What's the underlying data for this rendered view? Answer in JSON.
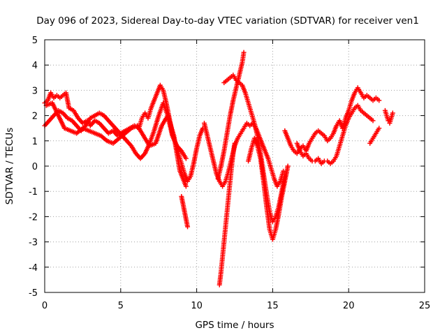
{
  "chart_data": {
    "type": "scatter",
    "title": "Day 096 of 2023, Sidereal Day-to-day VTEC variation (SDTVAR) for receiver ven1",
    "xlabel": "GPS time / hours",
    "ylabel": "SDTVAR / TECUs",
    "xlim": [
      0,
      25
    ],
    "ylim": [
      -5,
      5
    ],
    "xticks": [
      0,
      5,
      10,
      15,
      20,
      25
    ],
    "yticks": [
      -5,
      -4,
      -3,
      -2,
      -1,
      0,
      1,
      2,
      3,
      4,
      5
    ],
    "grid": true,
    "marker": "+",
    "color": "#ff0000",
    "series": [
      {
        "points": [
          [
            0,
            2.5
          ],
          [
            0.2,
            2.6
          ],
          [
            0.4,
            2.9
          ],
          [
            0.6,
            2.7
          ],
          [
            0.8,
            2.8
          ],
          [
            1.0,
            2.7
          ],
          [
            1.2,
            2.8
          ],
          [
            1.4,
            2.9
          ],
          [
            1.6,
            2.3
          ],
          [
            1.9,
            2.2
          ],
          [
            2.2,
            1.9
          ],
          [
            2.5,
            1.7
          ],
          [
            2.8,
            1.8
          ],
          [
            3.0,
            1.6
          ],
          [
            3.3,
            1.8
          ],
          [
            3.6,
            1.7
          ],
          [
            3.9,
            1.5
          ],
          [
            4.2,
            1.3
          ],
          [
            4.5,
            1.4
          ],
          [
            4.8,
            1.2
          ],
          [
            5.0,
            1.3
          ],
          [
            5.3,
            1.4
          ],
          [
            5.6,
            1.5
          ],
          [
            5.9,
            1.6
          ],
          [
            6.2,
            1.5
          ],
          [
            6.4,
            1.9
          ],
          [
            6.6,
            2.1
          ],
          [
            6.8,
            1.9
          ],
          [
            7.0,
            2.3
          ],
          [
            7.2,
            2.6
          ],
          [
            7.4,
            2.9
          ],
          [
            7.6,
            3.2
          ],
          [
            7.8,
            3.0
          ],
          [
            8.0,
            2.5
          ],
          [
            8.2,
            1.9
          ],
          [
            8.4,
            1.3
          ],
          [
            8.6,
            0.9
          ],
          [
            8.8,
            0.5
          ],
          [
            9.0,
            0.1
          ],
          [
            9.2,
            -0.3
          ],
          [
            9.4,
            -0.6
          ],
          [
            9.6,
            -0.4
          ],
          [
            9.8,
            0.1
          ],
          [
            10.0,
            0.7
          ],
          [
            10.2,
            1.2
          ],
          [
            10.4,
            1.5
          ]
        ]
      },
      {
        "points": [
          [
            0,
            1.6
          ],
          [
            0.3,
            1.8
          ],
          [
            0.6,
            2.0
          ],
          [
            0.9,
            2.2
          ],
          [
            1.2,
            2.1
          ],
          [
            1.5,
            1.9
          ],
          [
            1.8,
            1.8
          ],
          [
            2.1,
            1.6
          ],
          [
            2.4,
            1.4
          ],
          [
            2.7,
            1.6
          ],
          [
            3.0,
            1.9
          ],
          [
            3.3,
            2.0
          ],
          [
            3.6,
            2.1
          ],
          [
            3.9,
            2.0
          ],
          [
            4.2,
            1.8
          ],
          [
            4.5,
            1.6
          ],
          [
            4.8,
            1.4
          ],
          [
            5.1,
            1.2
          ],
          [
            5.4,
            1.0
          ],
          [
            5.7,
            0.8
          ],
          [
            6.0,
            0.5
          ],
          [
            6.3,
            0.3
          ],
          [
            6.6,
            0.5
          ],
          [
            6.9,
            0.9
          ],
          [
            7.2,
            1.4
          ],
          [
            7.5,
            2.0
          ],
          [
            7.8,
            2.5
          ],
          [
            8.1,
            2.0
          ],
          [
            8.4,
            1.2
          ],
          [
            8.7,
            0.8
          ],
          [
            9.0,
            0.6
          ],
          [
            9.3,
            0.3
          ]
        ]
      },
      {
        "points": [
          [
            0.1,
            2.4
          ],
          [
            0.5,
            2.5
          ],
          [
            0.9,
            2.0
          ],
          [
            1.3,
            1.5
          ],
          [
            1.7,
            1.4
          ],
          [
            2.1,
            1.3
          ],
          [
            2.5,
            1.5
          ],
          [
            2.9,
            1.4
          ],
          [
            3.3,
            1.3
          ],
          [
            3.7,
            1.2
          ],
          [
            4.1,
            1.0
          ],
          [
            4.5,
            0.9
          ],
          [
            4.9,
            1.1
          ],
          [
            5.3,
            1.3
          ],
          [
            5.7,
            1.5
          ],
          [
            6.1,
            1.6
          ],
          [
            6.5,
            1.2
          ],
          [
            6.9,
            0.8
          ],
          [
            7.3,
            0.9
          ],
          [
            7.7,
            1.6
          ],
          [
            8.1,
            2.0
          ],
          [
            8.5,
            1.2
          ],
          [
            8.9,
            -0.2
          ],
          [
            9.3,
            -0.8
          ]
        ]
      },
      {
        "points": [
          [
            9.0,
            -1.2
          ],
          [
            9.1,
            -1.5
          ],
          [
            9.2,
            -1.8
          ],
          [
            9.3,
            -2.1
          ],
          [
            9.4,
            -2.4
          ]
        ]
      },
      {
        "points": [
          [
            10.5,
            1.7
          ],
          [
            10.7,
            1.2
          ],
          [
            10.9,
            0.7
          ],
          [
            11.1,
            0.2
          ],
          [
            11.3,
            -0.3
          ],
          [
            11.5,
            -0.6
          ],
          [
            11.7,
            -0.8
          ],
          [
            11.9,
            -0.6
          ],
          [
            12.1,
            -0.2
          ],
          [
            12.3,
            0.3
          ],
          [
            12.5,
            0.8
          ],
          [
            12.7,
            1.1
          ],
          [
            12.9,
            1.3
          ],
          [
            13.1,
            1.5
          ],
          [
            13.3,
            1.7
          ],
          [
            13.5,
            1.6
          ],
          [
            13.7,
            1.7
          ],
          [
            13.9,
            1.5
          ],
          [
            14.1,
            1.2
          ],
          [
            14.3,
            0.9
          ],
          [
            14.5,
            0.6
          ],
          [
            14.7,
            0.3
          ],
          [
            14.9,
            -0.1
          ],
          [
            15.1,
            -0.5
          ],
          [
            15.3,
            -0.8
          ],
          [
            15.5,
            -0.6
          ],
          [
            15.7,
            -0.2
          ]
        ]
      },
      {
        "points": [
          [
            11.5,
            -4.7
          ],
          [
            11.6,
            -4.2
          ],
          [
            11.7,
            -3.6
          ],
          [
            11.8,
            -3.0
          ],
          [
            11.9,
            -2.4
          ],
          [
            12.0,
            -1.8
          ],
          [
            12.1,
            -1.2
          ],
          [
            12.2,
            -0.6
          ],
          [
            12.3,
            0.0
          ],
          [
            12.4,
            0.5
          ],
          [
            12.5,
            0.9
          ]
        ]
      },
      {
        "points": [
          [
            11.4,
            -0.5
          ],
          [
            11.6,
            0.0
          ],
          [
            11.8,
            0.6
          ],
          [
            12.0,
            1.3
          ],
          [
            12.2,
            2.0
          ],
          [
            12.4,
            2.6
          ],
          [
            12.6,
            3.1
          ],
          [
            12.8,
            3.6
          ],
          [
            13.0,
            4.1
          ],
          [
            13.1,
            4.5
          ]
        ]
      },
      {
        "points": [
          [
            11.8,
            3.3
          ],
          [
            12.0,
            3.4
          ],
          [
            12.2,
            3.5
          ],
          [
            12.4,
            3.6
          ],
          [
            12.6,
            3.4
          ],
          [
            12.8,
            3.3
          ],
          [
            13.0,
            3.2
          ],
          [
            13.2,
            2.9
          ],
          [
            13.4,
            2.5
          ],
          [
            13.6,
            2.1
          ],
          [
            13.8,
            1.7
          ],
          [
            14.0,
            1.2
          ],
          [
            14.2,
            0.5
          ],
          [
            14.4,
            -0.3
          ],
          [
            14.6,
            -1.1
          ],
          [
            14.8,
            -1.8
          ],
          [
            15.0,
            -2.2
          ],
          [
            15.2,
            -2.0
          ],
          [
            15.4,
            -1.6
          ],
          [
            15.6,
            -1.0
          ],
          [
            15.8,
            -0.4
          ]
        ]
      },
      {
        "points": [
          [
            13.4,
            0.2
          ],
          [
            13.6,
            0.7
          ],
          [
            13.8,
            1.1
          ],
          [
            14.0,
            0.8
          ],
          [
            14.2,
            0.3
          ],
          [
            14.4,
            -0.6
          ],
          [
            14.6,
            -1.6
          ],
          [
            14.8,
            -2.5
          ],
          [
            15.0,
            -2.9
          ],
          [
            15.2,
            -2.5
          ],
          [
            15.4,
            -1.9
          ],
          [
            15.6,
            -1.2
          ],
          [
            15.8,
            -0.6
          ],
          [
            16.0,
            0.0
          ]
        ]
      },
      {
        "points": [
          [
            15.8,
            1.4
          ],
          [
            16.0,
            1.1
          ],
          [
            16.2,
            0.8
          ],
          [
            16.4,
            0.6
          ],
          [
            16.6,
            0.5
          ],
          [
            16.8,
            0.7
          ],
          [
            17.0,
            0.8
          ],
          [
            17.2,
            0.6
          ],
          [
            17.4,
            0.9
          ],
          [
            17.6,
            1.1
          ],
          [
            17.8,
            1.3
          ],
          [
            18.0,
            1.4
          ],
          [
            18.2,
            1.3
          ],
          [
            18.4,
            1.2
          ],
          [
            18.6,
            1.0
          ],
          [
            18.8,
            1.1
          ],
          [
            19.0,
            1.3
          ],
          [
            19.2,
            1.6
          ],
          [
            19.4,
            1.8
          ],
          [
            19.6,
            1.5
          ],
          [
            19.8,
            1.9
          ],
          [
            20.0,
            2.2
          ],
          [
            20.2,
            2.6
          ],
          [
            20.4,
            2.9
          ],
          [
            20.6,
            3.1
          ],
          [
            20.8,
            2.9
          ],
          [
            21.0,
            2.7
          ],
          [
            21.2,
            2.8
          ],
          [
            21.4,
            2.7
          ],
          [
            21.6,
            2.6
          ],
          [
            21.8,
            2.7
          ],
          [
            22.0,
            2.6
          ]
        ]
      },
      {
        "points": [
          [
            16.6,
            0.9
          ],
          [
            16.8,
            0.6
          ],
          [
            17.0,
            0.4
          ],
          [
            17.2,
            0.5
          ],
          [
            17.4,
            0.3
          ],
          [
            17.6,
            0.2
          ],
          [
            17.8,
            0.2
          ],
          [
            18.0,
            0.3
          ],
          [
            18.2,
            0.1
          ],
          [
            18.4,
            0.2
          ],
          [
            18.6,
            0.2
          ],
          [
            18.8,
            0.1
          ],
          [
            19.0,
            0.2
          ],
          [
            19.2,
            0.4
          ],
          [
            19.4,
            0.8
          ],
          [
            19.6,
            1.2
          ],
          [
            19.8,
            1.6
          ],
          [
            20.0,
            1.9
          ],
          [
            20.2,
            2.1
          ],
          [
            20.4,
            2.3
          ],
          [
            20.6,
            2.4
          ],
          [
            20.8,
            2.2
          ],
          [
            21.0,
            2.1
          ],
          [
            21.2,
            2.0
          ],
          [
            21.4,
            1.9
          ],
          [
            21.6,
            1.8
          ]
        ]
      },
      {
        "points": [
          [
            21.4,
            0.9
          ],
          [
            21.6,
            1.1
          ],
          [
            21.8,
            1.3
          ],
          [
            22.0,
            1.5
          ]
        ]
      },
      {
        "points": [
          [
            22.4,
            2.2
          ],
          [
            22.5,
            2.0
          ],
          [
            22.6,
            1.8
          ],
          [
            22.7,
            1.7
          ],
          [
            22.8,
            1.9
          ],
          [
            22.9,
            2.1
          ]
        ]
      }
    ]
  }
}
